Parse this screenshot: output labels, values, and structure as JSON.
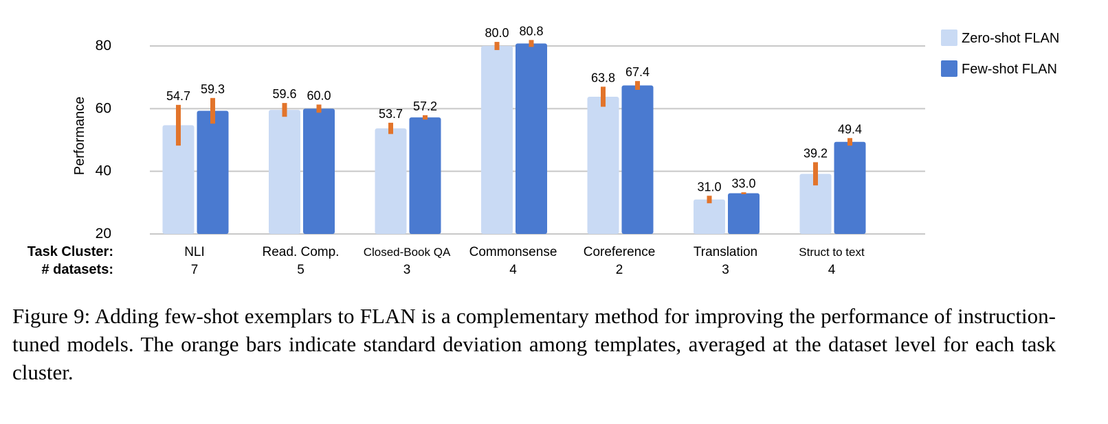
{
  "chart_data": {
    "type": "bar",
    "ylabel": "Performance",
    "ylim": [
      20,
      80
    ],
    "yticks": [
      20,
      40,
      60,
      80
    ],
    "grid": true,
    "legend_placement": "right",
    "row_labels": {
      "categories": "Task Cluster:",
      "datasets": "# datasets:"
    },
    "categories": [
      "NLI",
      "Read. Comp.",
      "Closed-Book QA",
      "Commonsense",
      "Coreference",
      "Translation",
      "Struct to text"
    ],
    "num_datasets": [
      "7",
      "5",
      "3",
      "4",
      "2",
      "3",
      "4"
    ],
    "series": [
      {
        "name": "Zero-shot FLAN",
        "color": "#c9daf4",
        "values": [
          54.7,
          59.6,
          53.7,
          80.0,
          63.8,
          31.0,
          39.2
        ],
        "std": [
          6.5,
          2.2,
          1.8,
          1.3,
          3.2,
          1.2,
          3.7
        ]
      },
      {
        "name": "Few-shot FLAN",
        "color": "#4a7ad0",
        "values": [
          59.3,
          60.0,
          57.2,
          80.8,
          67.4,
          33.0,
          49.4
        ],
        "std": [
          4.1,
          1.3,
          0.7,
          1.1,
          1.4,
          0.3,
          1.2
        ]
      }
    ],
    "error_bar_color": "#e2742b",
    "data_labels": [
      [
        "54.7",
        "59.6",
        "53.7",
        "80.0",
        "63.8",
        "31.0",
        "39.2"
      ],
      [
        "59.3",
        "60.0",
        "57.2",
        "80.8",
        "67.4",
        "33.0",
        "49.4"
      ]
    ]
  },
  "caption": "Figure 9:   Adding few-shot exemplars to FLAN is a complementary method for improving the performance of instruction-tuned models.  The orange bars indicate standard deviation among templates, averaged at the dataset level for each task cluster."
}
